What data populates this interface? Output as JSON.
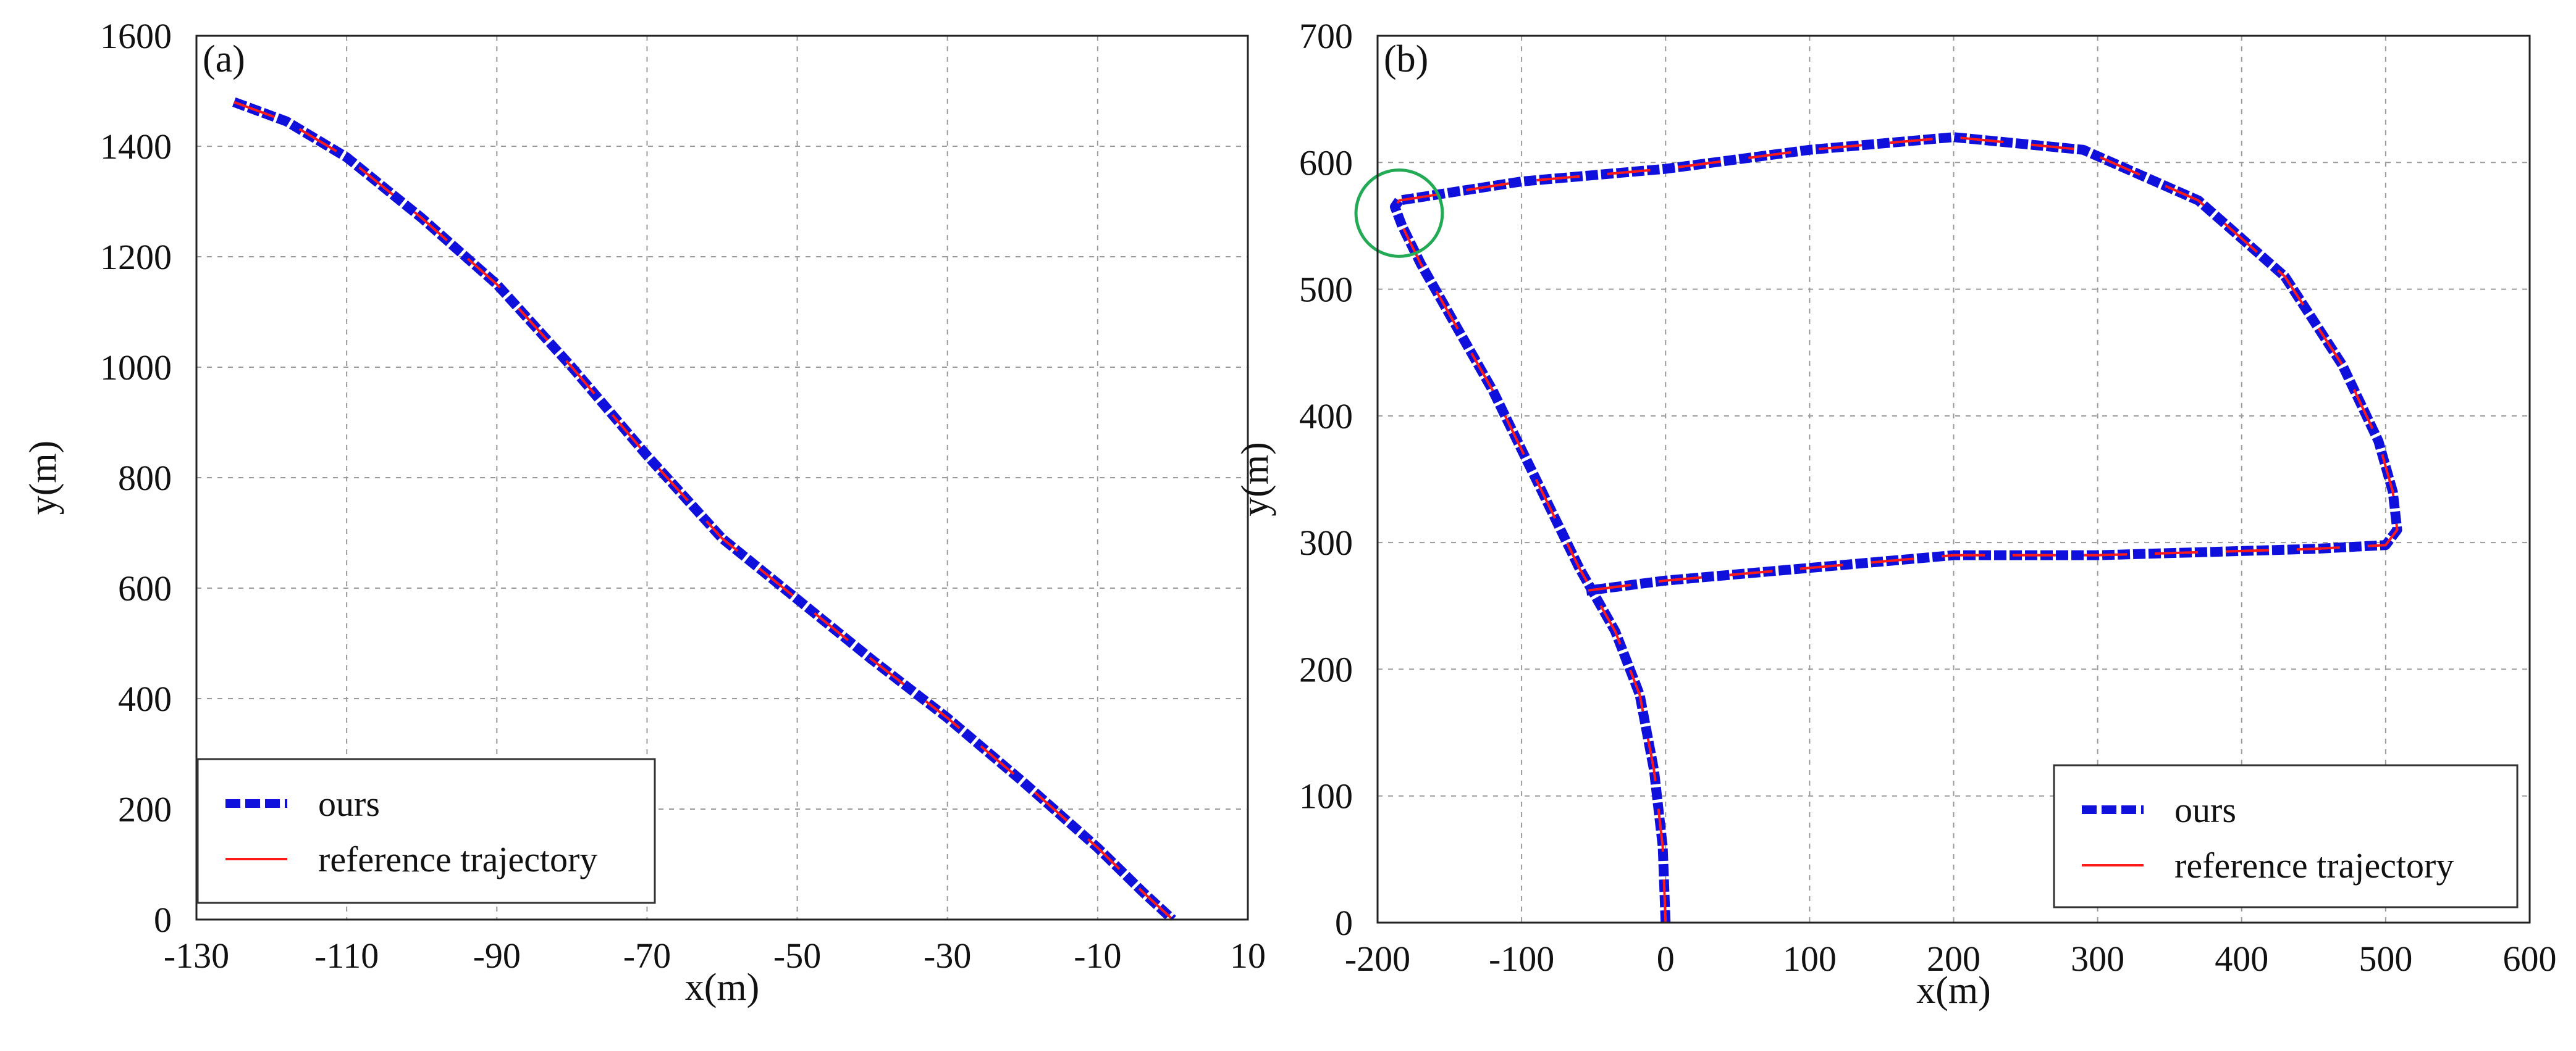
{
  "chart_data": [
    {
      "type": "line",
      "panel_label": "(a)",
      "xlabel": "x(m)",
      "ylabel": "y(m)",
      "xlim": [
        -130,
        10
      ],
      "ylim": [
        0,
        1600
      ],
      "xticks": [
        -130,
        -110,
        -90,
        -70,
        -50,
        -30,
        -10,
        10
      ],
      "yticks": [
        0,
        200,
        400,
        600,
        800,
        1000,
        1200,
        1400,
        1600
      ],
      "grid": true,
      "legend_position": "bottom-left",
      "series": [
        {
          "name": "ours",
          "style": "dashed",
          "color": "#1010dd",
          "x": [
            -125,
            -118,
            -110,
            -100,
            -90,
            -80,
            -70,
            -60,
            -50,
            -40,
            -30,
            -20,
            -10,
            -4,
            0
          ],
          "y": [
            1480,
            1445,
            1380,
            1270,
            1150,
            1000,
            840,
            690,
            580,
            470,
            365,
            250,
            130,
            50,
            0
          ]
        },
        {
          "name": "reference trajectory",
          "style": "solid",
          "color": "#ff1a1a",
          "x": [
            -125,
            -118,
            -110,
            -100,
            -90,
            -80,
            -70,
            -60,
            -50,
            -40,
            -30,
            -20,
            -10,
            -4,
            0
          ],
          "y": [
            1480,
            1445,
            1380,
            1270,
            1150,
            1000,
            840,
            690,
            580,
            470,
            365,
            250,
            130,
            50,
            0
          ]
        }
      ]
    },
    {
      "type": "line",
      "panel_label": "(b)",
      "xlabel": "x(m)",
      "ylabel": "y(m)",
      "xlim": [
        -200,
        600
      ],
      "ylim": [
        0,
        700
      ],
      "xticks": [
        -200,
        -100,
        0,
        100,
        200,
        300,
        400,
        500,
        600
      ],
      "yticks": [
        0,
        100,
        200,
        300,
        400,
        500,
        600,
        700
      ],
      "grid": true,
      "legend_position": "bottom-right",
      "annotation": {
        "type": "circle",
        "x": -185,
        "y": 560,
        "radius_data_x": 30,
        "color": "#22aa55"
      },
      "series": [
        {
          "name": "ours",
          "style": "dashed",
          "color": "#1010dd",
          "x": [
            0,
            -2,
            -8,
            -18,
            -35,
            -60,
            -90,
            -120,
            -150,
            -170,
            -183,
            -188,
            -185,
            -100,
            0,
            100,
            200,
            290,
            370,
            430,
            470,
            495,
            505,
            508,
            500,
            450,
            300,
            200,
            100,
            0,
            -55
          ],
          "y": [
            0,
            60,
            120,
            180,
            230,
            280,
            350,
            420,
            480,
            520,
            550,
            565,
            570,
            585,
            595,
            610,
            620,
            610,
            570,
            510,
            440,
            380,
            340,
            310,
            298,
            295,
            290,
            290,
            280,
            270,
            262
          ]
        },
        {
          "name": "reference trajectory",
          "style": "solid",
          "color": "#ff1a1a",
          "x": [
            0,
            -2,
            -8,
            -18,
            -35,
            -60,
            -90,
            -120,
            -150,
            -170,
            -183,
            -188,
            -185,
            -100,
            0,
            100,
            200,
            290,
            370,
            430,
            470,
            495,
            505,
            508,
            500,
            450,
            300,
            200,
            100,
            0,
            -55
          ],
          "y": [
            0,
            60,
            120,
            180,
            230,
            280,
            350,
            420,
            480,
            520,
            550,
            565,
            570,
            585,
            595,
            610,
            620,
            610,
            570,
            510,
            440,
            380,
            340,
            310,
            298,
            295,
            290,
            290,
            280,
            270,
            262
          ]
        }
      ]
    }
  ]
}
